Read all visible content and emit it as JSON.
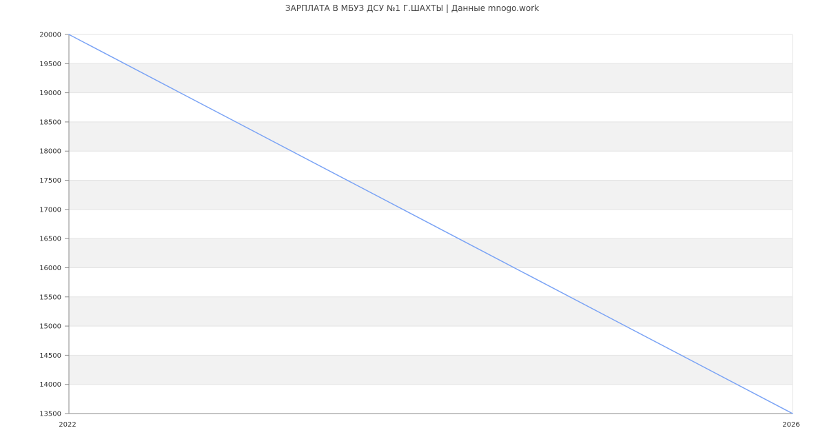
{
  "chart_data": {
    "type": "line",
    "title": "ЗАРПЛАТА В МБУЗ ДСУ №1 Г.ШАХТЫ | Данные mnogo.work",
    "xlabel": "",
    "ylabel": "",
    "x": [
      2022,
      2026
    ],
    "series": [
      {
        "values": [
          20000,
          13500
        ],
        "color": "#7aa3f5"
      }
    ],
    "xlim": [
      2022,
      2026
    ],
    "ylim": [
      13500,
      20000
    ],
    "xticks": [
      "2022",
      "2026"
    ],
    "yticks": [
      13500,
      14000,
      14500,
      15000,
      15500,
      16000,
      16500,
      17000,
      17500,
      18000,
      18500,
      19000,
      19500,
      20000
    ],
    "grid": true,
    "band_color": "#f2f2f2",
    "legend": "none"
  }
}
